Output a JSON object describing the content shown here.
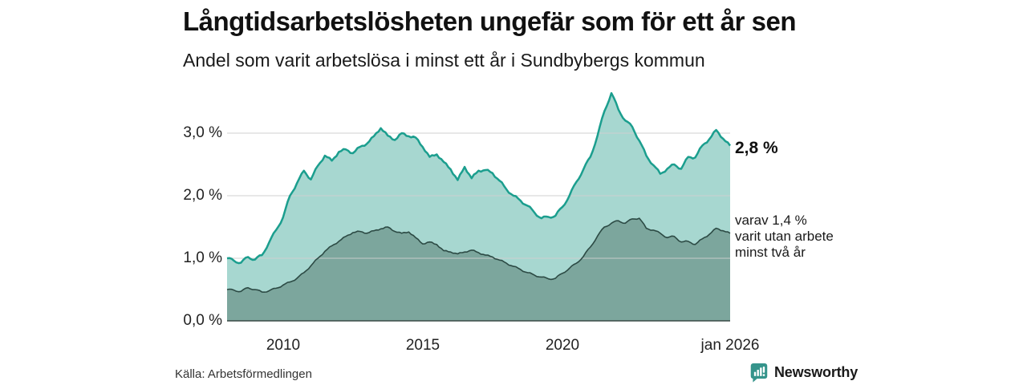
{
  "header": {
    "title": "Långtidsarbetslösheten ungefär som för ett år sen",
    "subtitle": "Andel som varit arbetslösa i minst ett år i Sundbybergs kommun"
  },
  "annotations": {
    "latest_value": "2,8 %",
    "secondary_lines": [
      "varav 1,4 %",
      "varit utan arbete",
      "minst två år"
    ]
  },
  "footer": {
    "source": "Källa: Arbetsförmedlingen",
    "brand": "Newsworthy"
  },
  "colors": {
    "grid": "#cfcfcf",
    "axis_line": "#3a4a46",
    "text": "#1a1a1a",
    "brand_teal": "#35948b"
  },
  "chart_data": {
    "type": "area",
    "title": "Långtidsarbetslösheten ungefär som för ett år sen",
    "subtitle": "Andel som varit arbetslösa i minst ett år i Sundbybergs kommun",
    "xlabel": "",
    "ylabel": "",
    "xlim": [
      2008,
      2026
    ],
    "ylim": [
      0,
      3.73
    ],
    "grid": "horizontal",
    "x_start": 2008,
    "x_step_years": 0.25,
    "yticks": {
      "values": [
        3,
        2,
        1,
        0
      ],
      "labels": [
        "3,0 %",
        "2,0 %",
        "1,0 %",
        "0,0 %"
      ]
    },
    "xticks": {
      "values": [
        2010,
        2015,
        2020,
        2026
      ],
      "labels": [
        "2010",
        "2015",
        "2020",
        "jan 2026"
      ]
    },
    "series": [
      {
        "name": "Andel arbetslösa minst ett år",
        "latest_label": "2,8 %",
        "latest_value": 2.8,
        "line_color": "#1b9e8e",
        "fill_color": "#a7d7d0",
        "values": [
          1.0,
          0.96,
          0.93,
          1.02,
          0.98,
          1.05,
          1.25,
          1.45,
          1.65,
          2.0,
          2.2,
          2.4,
          2.26,
          2.48,
          2.64,
          2.56,
          2.7,
          2.74,
          2.68,
          2.78,
          2.83,
          2.95,
          3.08,
          2.96,
          2.89,
          3.0,
          2.95,
          2.93,
          2.78,
          2.62,
          2.66,
          2.54,
          2.42,
          2.25,
          2.46,
          2.28,
          2.4,
          2.41,
          2.36,
          2.24,
          2.1,
          2.0,
          1.92,
          1.84,
          1.73,
          1.64,
          1.66,
          1.68,
          1.82,
          2.0,
          2.22,
          2.42,
          2.62,
          2.95,
          3.35,
          3.64,
          3.38,
          3.2,
          3.1,
          2.88,
          2.64,
          2.49,
          2.35,
          2.43,
          2.5,
          2.43,
          2.62,
          2.61,
          2.8,
          2.9,
          3.05,
          2.91,
          2.8
        ]
      },
      {
        "name": "Varav utan arbete minst två år",
        "latest_label": "varav 1,4 %",
        "latest_value": 1.4,
        "line_color": "#2c4a44",
        "fill_color": "#7ca69d",
        "values": [
          0.5,
          0.49,
          0.47,
          0.53,
          0.5,
          0.46,
          0.48,
          0.52,
          0.57,
          0.62,
          0.68,
          0.77,
          0.88,
          1.0,
          1.11,
          1.2,
          1.27,
          1.35,
          1.41,
          1.43,
          1.4,
          1.44,
          1.47,
          1.5,
          1.43,
          1.4,
          1.42,
          1.33,
          1.23,
          1.26,
          1.22,
          1.12,
          1.1,
          1.07,
          1.1,
          1.13,
          1.09,
          1.05,
          1.02,
          0.97,
          0.92,
          0.87,
          0.82,
          0.77,
          0.73,
          0.7,
          0.67,
          0.68,
          0.76,
          0.84,
          0.92,
          1.03,
          1.18,
          1.35,
          1.5,
          1.56,
          1.6,
          1.56,
          1.63,
          1.64,
          1.48,
          1.45,
          1.4,
          1.33,
          1.35,
          1.26,
          1.27,
          1.22,
          1.31,
          1.38,
          1.48,
          1.44,
          1.4
        ]
      }
    ]
  }
}
